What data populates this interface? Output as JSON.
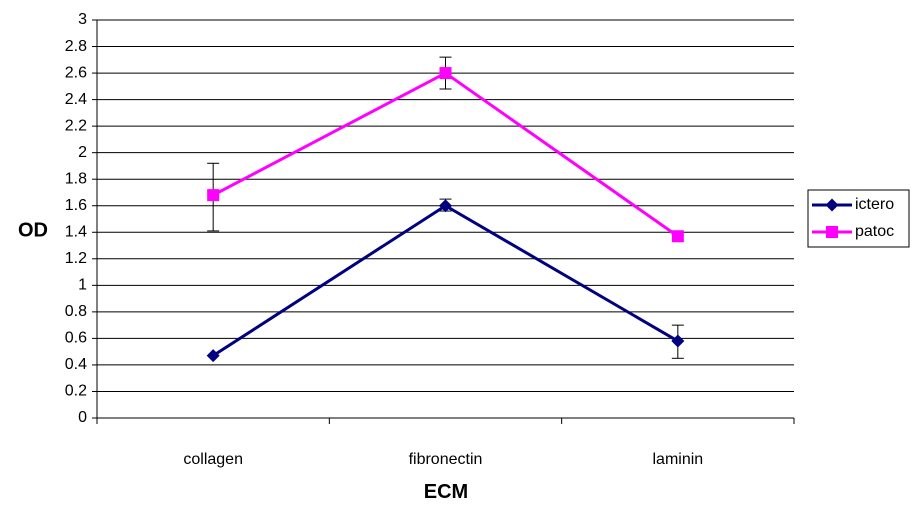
{
  "chart_data": {
    "type": "line",
    "categories": [
      "collagen",
      "fibronectin",
      "laminin"
    ],
    "xlabel": "ECM",
    "ylabel": "OD",
    "ylim": [
      0,
      3
    ],
    "ytick_step": 0.2,
    "yticks": [
      "0",
      "0.2",
      "0.4",
      "0.6",
      "0.8",
      "1",
      "1.2",
      "1.4",
      "1.6",
      "1.8",
      "2",
      "2.2",
      "2.4",
      "2.6",
      "2.8",
      "3"
    ],
    "grid": true,
    "legend_position": "right",
    "series": [
      {
        "name": "ictero",
        "color": "#000080",
        "marker": "diamond",
        "values": [
          0.47,
          1.6,
          0.58
        ],
        "error_low": [
          0.47,
          1.56,
          0.45
        ],
        "error_high": [
          0.47,
          1.65,
          0.7
        ]
      },
      {
        "name": "patoc",
        "color": "#FF00FF",
        "marker": "square",
        "values": [
          1.68,
          2.6,
          1.37
        ],
        "error_low": [
          1.41,
          2.48,
          1.37
        ],
        "error_high": [
          1.92,
          2.72,
          1.37
        ]
      }
    ]
  }
}
